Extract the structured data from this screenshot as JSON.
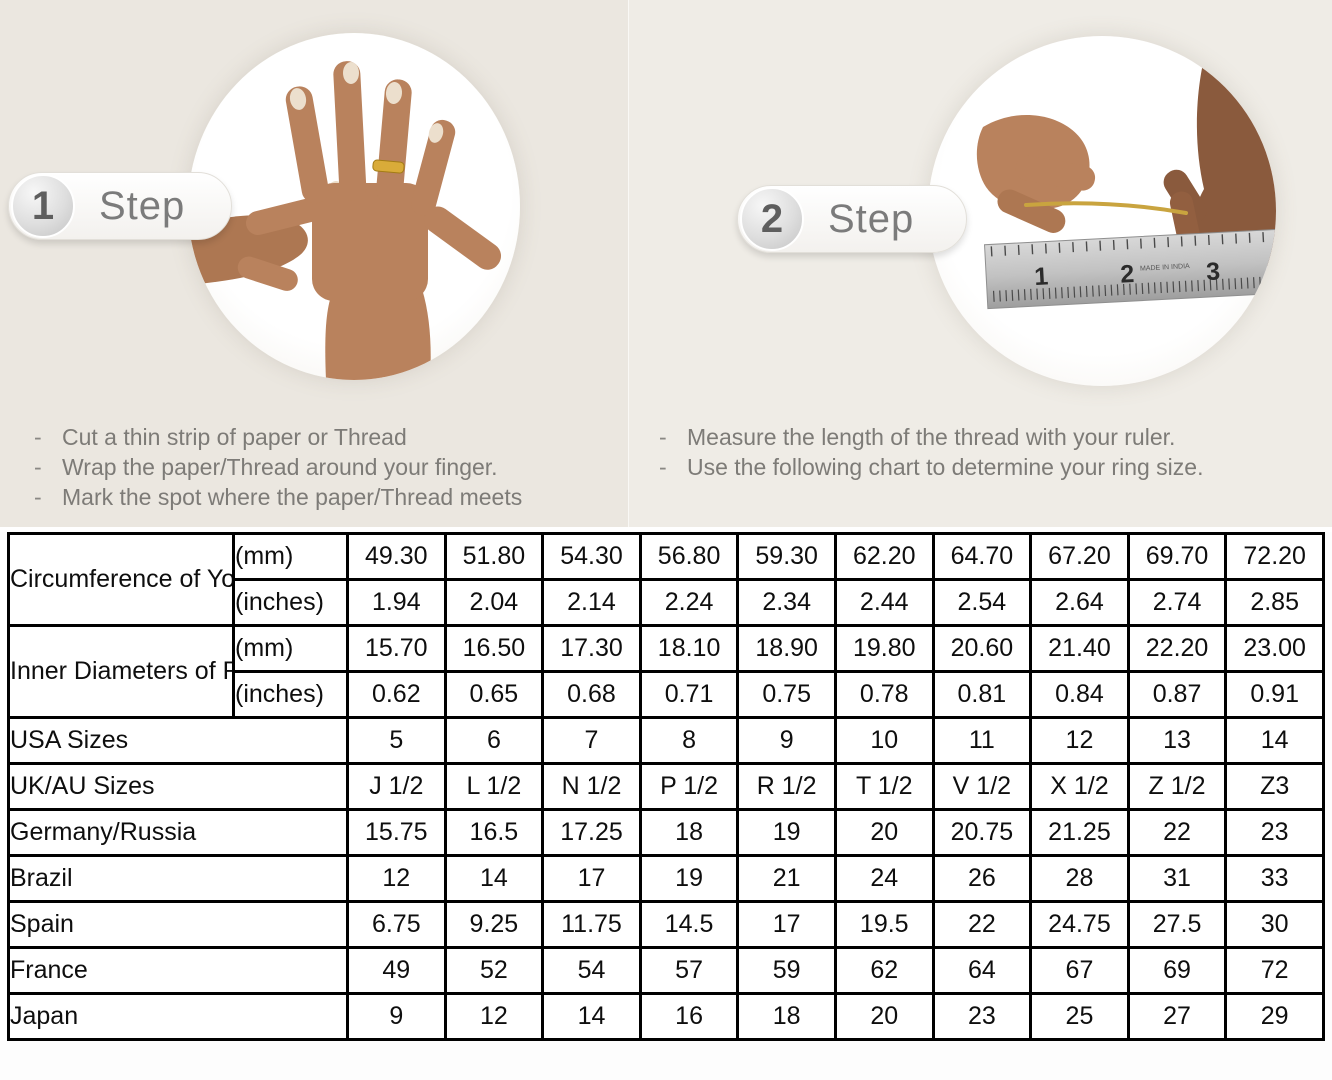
{
  "steps": [
    {
      "number": "1",
      "label": "Step",
      "instructions": [
        "Cut a thin strip of paper or Thread",
        "Wrap the paper/Thread around your finger.",
        "Mark the spot where the paper/Thread meets"
      ]
    },
    {
      "number": "2",
      "label": "Step",
      "instructions": [
        "Measure the length of the thread with your ruler.",
        "Use the following chart to determine your ring size."
      ]
    }
  ],
  "photos": {
    "ruler_numbers": [
      "1",
      "2",
      "3"
    ],
    "ruler_made_in": "MADE IN INDIA"
  },
  "table": {
    "groups": [
      {
        "label": "Circumference of Your Finger",
        "rows": [
          {
            "unit": "(mm)",
            "shaded": true,
            "values": [
              "49.30",
              "51.80",
              "54.30",
              "56.80",
              "59.30",
              "62.20",
              "64.70",
              "67.20",
              "69.70",
              "72.20"
            ]
          },
          {
            "unit": "(inches)",
            "shaded": false,
            "values": [
              "1.94",
              "2.04",
              "2.14",
              "2.24",
              "2.34",
              "2.44",
              "2.54",
              "2.64",
              "2.74",
              "2.85"
            ]
          }
        ]
      },
      {
        "label": "Inner Diameters of Rings",
        "rows": [
          {
            "unit": "(mm)",
            "shaded": false,
            "values": [
              "15.70",
              "16.50",
              "17.30",
              "18.10",
              "18.90",
              "19.80",
              "20.60",
              "21.40",
              "22.20",
              "23.00"
            ]
          },
          {
            "unit": "(inches)",
            "shaded": false,
            "values": [
              "0.62",
              "0.65",
              "0.68",
              "0.71",
              "0.75",
              "0.78",
              "0.81",
              "0.84",
              "0.87",
              "0.91"
            ]
          }
        ]
      }
    ],
    "size_rows": [
      {
        "label": "USA Sizes",
        "shaded": true,
        "values": [
          "5",
          "6",
          "7",
          "8",
          "9",
          "10",
          "11",
          "12",
          "13",
          "14"
        ]
      },
      {
        "label": "UK/AU Sizes",
        "shaded": false,
        "values": [
          "J 1/2",
          "L 1/2",
          "N 1/2",
          "P 1/2",
          "R 1/2",
          "T 1/2",
          "V 1/2",
          "X 1/2",
          "Z 1/2",
          "Z3"
        ]
      },
      {
        "label": "Germany/Russia",
        "shaded": false,
        "values": [
          "15.75",
          "16.5",
          "17.25",
          "18",
          "19",
          "20",
          "20.75",
          "21.25",
          "22",
          "23"
        ]
      },
      {
        "label": "Brazil",
        "shaded": false,
        "values": [
          "12",
          "14",
          "17",
          "19",
          "21",
          "24",
          "26",
          "28",
          "31",
          "33"
        ]
      },
      {
        "label": "Spain",
        "shaded": false,
        "values": [
          "6.75",
          "9.25",
          "11.75",
          "14.5",
          "17",
          "19.5",
          "22",
          "24.75",
          "27.5",
          "30"
        ]
      },
      {
        "label": "France",
        "shaded": false,
        "values": [
          "49",
          "52",
          "54",
          "57",
          "59",
          "62",
          "64",
          "67",
          "69",
          "72"
        ]
      },
      {
        "label": "Japan",
        "shaded": false,
        "values": [
          "9",
          "12",
          "14",
          "16",
          "18",
          "20",
          "23",
          "25",
          "27",
          "29"
        ]
      }
    ]
  },
  "chart_data": {
    "type": "table",
    "rows": [
      {
        "label": "Circumference of Your Finger (mm)",
        "values": [
          49.3,
          51.8,
          54.3,
          56.8,
          59.3,
          62.2,
          64.7,
          67.2,
          69.7,
          72.2
        ]
      },
      {
        "label": "Circumference of Your Finger (inches)",
        "values": [
          1.94,
          2.04,
          2.14,
          2.24,
          2.34,
          2.44,
          2.54,
          2.64,
          2.74,
          2.85
        ]
      },
      {
        "label": "Inner Diameters of Rings (mm)",
        "values": [
          15.7,
          16.5,
          17.3,
          18.1,
          18.9,
          19.8,
          20.6,
          21.4,
          22.2,
          23.0
        ]
      },
      {
        "label": "Inner Diameters of Rings (inches)",
        "values": [
          0.62,
          0.65,
          0.68,
          0.71,
          0.75,
          0.78,
          0.81,
          0.84,
          0.87,
          0.91
        ]
      },
      {
        "label": "USA Sizes",
        "values": [
          5,
          6,
          7,
          8,
          9,
          10,
          11,
          12,
          13,
          14
        ]
      },
      {
        "label": "UK/AU Sizes",
        "values": [
          "J 1/2",
          "L 1/2",
          "N 1/2",
          "P 1/2",
          "R 1/2",
          "T 1/2",
          "V 1/2",
          "X 1/2",
          "Z 1/2",
          "Z3"
        ]
      },
      {
        "label": "Germany/Russia",
        "values": [
          15.75,
          16.5,
          17.25,
          18,
          19,
          20,
          20.75,
          21.25,
          22,
          23
        ]
      },
      {
        "label": "Brazil",
        "values": [
          12,
          14,
          17,
          19,
          21,
          24,
          26,
          28,
          31,
          33
        ]
      },
      {
        "label": "Spain",
        "values": [
          6.75,
          9.25,
          11.75,
          14.5,
          17,
          19.5,
          22,
          24.75,
          27.5,
          30
        ]
      },
      {
        "label": "France",
        "values": [
          49,
          52,
          54,
          57,
          59,
          62,
          64,
          67,
          69,
          72
        ]
      },
      {
        "label": "Japan",
        "values": [
          9,
          12,
          14,
          16,
          18,
          20,
          23,
          25,
          27,
          29
        ]
      }
    ]
  },
  "colors": {
    "background_beige": "#ece8e1",
    "table_shaded_cell": "#d9d9d9",
    "table_border": "#000000",
    "instruction_text": "#7d7b77",
    "step_text": "#7b7b7b",
    "skin": "#b9825d",
    "skin_dark": "#8a5a3d",
    "gold": "#c9a43f",
    "ruler_gray": "#c2c2c2"
  }
}
